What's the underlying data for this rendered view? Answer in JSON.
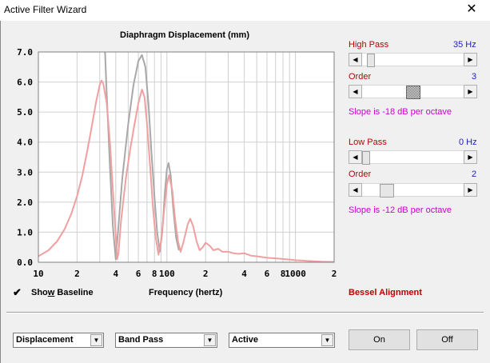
{
  "window": {
    "title": "Active Filter Wizard",
    "close_glyph": "✕"
  },
  "chart_data": {
    "type": "line",
    "title": "Diaphragm Displacement (mm)",
    "xlabel": "Frequency (hertz)",
    "ylabel": "",
    "x_scale": "log",
    "xlim": [
      10,
      2000
    ],
    "ylim": [
      0,
      7
    ],
    "y_ticks": [
      "0.0",
      "1.0",
      "2.0",
      "3.0",
      "4.0",
      "5.0",
      "6.0",
      "7.0"
    ],
    "x_tick_labels": [
      {
        "x": 10,
        "label": "10"
      },
      {
        "x": 20,
        "label": "2"
      },
      {
        "x": 40,
        "label": "4"
      },
      {
        "x": 60,
        "label": "6"
      },
      {
        "x": 80,
        "label": "8"
      },
      {
        "x": 100,
        "label": "100"
      },
      {
        "x": 200,
        "label": "2"
      },
      {
        "x": 400,
        "label": "4"
      },
      {
        "x": 600,
        "label": "6"
      },
      {
        "x": 800,
        "label": "8"
      },
      {
        "x": 1000,
        "label": "1000"
      },
      {
        "x": 2000,
        "label": "2"
      }
    ],
    "grid": true,
    "series": [
      {
        "name": "",
        "color": "#a8a8a8",
        "points": [
          [
            33,
            7.0
          ],
          [
            34,
            5.6
          ],
          [
            36,
            3.2
          ],
          [
            38,
            1.2
          ],
          [
            40,
            0.1
          ],
          [
            42,
            1.2
          ],
          [
            45,
            2.8
          ],
          [
            50,
            4.6
          ],
          [
            55,
            5.9
          ],
          [
            60,
            6.7
          ],
          [
            64,
            6.9
          ],
          [
            68,
            6.5
          ],
          [
            72,
            5.2
          ],
          [
            76,
            3.6
          ],
          [
            80,
            2.2
          ],
          [
            84,
            1.0
          ],
          [
            88,
            0.35
          ],
          [
            92,
            1.0
          ],
          [
            96,
            2.2
          ],
          [
            100,
            3.1
          ],
          [
            103,
            3.3
          ],
          [
            107,
            2.9
          ],
          [
            112,
            1.8
          ],
          [
            118,
            0.8
          ],
          [
            124,
            0.4
          ]
        ]
      },
      {
        "name": "",
        "color": "#f0a0a0",
        "points": [
          [
            10,
            0.2
          ],
          [
            12,
            0.4
          ],
          [
            14,
            0.7
          ],
          [
            16,
            1.1
          ],
          [
            18,
            1.6
          ],
          [
            20,
            2.2
          ],
          [
            22,
            2.9
          ],
          [
            24,
            3.7
          ],
          [
            26,
            4.5
          ],
          [
            28,
            5.3
          ],
          [
            30,
            5.9
          ],
          [
            31,
            6.05
          ],
          [
            32,
            5.95
          ],
          [
            34,
            5.3
          ],
          [
            36,
            4.0
          ],
          [
            38,
            2.4
          ],
          [
            40,
            0.9
          ],
          [
            41,
            0.1
          ],
          [
            42,
            0.3
          ],
          [
            44,
            1.4
          ],
          [
            48,
            2.8
          ],
          [
            52,
            3.8
          ],
          [
            56,
            4.6
          ],
          [
            60,
            5.3
          ],
          [
            64,
            5.75
          ],
          [
            67,
            5.5
          ],
          [
            70,
            4.6
          ],
          [
            74,
            3.2
          ],
          [
            78,
            1.8
          ],
          [
            82,
            0.8
          ],
          [
            86,
            0.25
          ],
          [
            90,
            0.7
          ],
          [
            95,
            1.7
          ],
          [
            100,
            2.6
          ],
          [
            104,
            2.9
          ],
          [
            110,
            2.4
          ],
          [
            116,
            1.4
          ],
          [
            122,
            0.7
          ],
          [
            128,
            0.35
          ],
          [
            135,
            0.7
          ],
          [
            145,
            1.25
          ],
          [
            152,
            1.45
          ],
          [
            160,
            1.2
          ],
          [
            170,
            0.7
          ],
          [
            180,
            0.4
          ],
          [
            190,
            0.5
          ],
          [
            200,
            0.65
          ],
          [
            215,
            0.55
          ],
          [
            230,
            0.4
          ],
          [
            250,
            0.45
          ],
          [
            270,
            0.35
          ],
          [
            300,
            0.35
          ],
          [
            330,
            0.3
          ],
          [
            360,
            0.28
          ],
          [
            400,
            0.3
          ],
          [
            450,
            0.22
          ],
          [
            500,
            0.2
          ],
          [
            600,
            0.15
          ],
          [
            700,
            0.13
          ],
          [
            800,
            0.11
          ],
          [
            1000,
            0.07
          ],
          [
            1300,
            0.04
          ],
          [
            1600,
            0.02
          ],
          [
            2000,
            0.01
          ]
        ]
      }
    ]
  },
  "high_pass": {
    "label": "High Pass",
    "value_text": "35 Hz",
    "position": 0.05,
    "order_label": "Order",
    "order_value": "3",
    "order_position": 0.5,
    "slope_text": "Slope is -18 dB per octave"
  },
  "low_pass": {
    "label": "Low Pass",
    "value_text": "0 Hz",
    "position": 0.0,
    "order_label": "Order",
    "order_value": "2",
    "order_position": 0.2,
    "slope_text": "Slope is -12 dB per octave"
  },
  "show_baseline": {
    "label_pre": "Sho",
    "label_u": "w",
    "label_post": " Baseline",
    "check_glyph": "✔"
  },
  "alignment_text": "Bessel Alignment",
  "combos": [
    {
      "value": "Displacement"
    },
    {
      "value": "Band Pass"
    },
    {
      "value": "Active"
    }
  ],
  "buttons": {
    "on": "On",
    "off": "Off"
  },
  "icons": {
    "arrow_left": "◀",
    "arrow_right": "▶",
    "arrow_down": "▼"
  }
}
